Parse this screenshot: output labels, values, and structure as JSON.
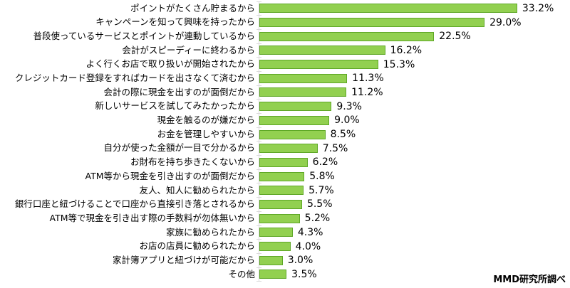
{
  "chart_data": {
    "type": "bar",
    "orientation": "horizontal",
    "title": "",
    "xlabel": "",
    "ylabel": "",
    "xlim": [
      0,
      40
    ],
    "grid": false,
    "legend": false,
    "bar_color": "#92d050",
    "bar_border_color": "#5ea726",
    "axis_color": "#d9d9d9",
    "categories": [
      "ポイントがたくさん貯まるから",
      "キャンペーンを知って興味を持ったから",
      "普段使っているサービスとポイントが連動しているから",
      "会計がスピーディーに終わるから",
      "よく行くお店で取り扱いが開始されたから",
      "クレジットカード登録をすればカードを出さなくて済むから",
      "会計の際に現金を出すのが面倒だから",
      "新しいサービスを試してみたかったから",
      "現金を触るのが嫌だから",
      "お金を管理しやすいから",
      "自分が使った金額が一目で分かるから",
      "お財布を持ち歩きたくないから",
      "ATM等から現金を引き出すのが面倒だから",
      "友人、知人に勧められたから",
      "銀行口座と紐づけることで口座から直接引き落とされるから",
      "ATM等で現金を引き出す際の手数料が勿体無いから",
      "家族に勧められたから",
      "お店の店員に勧められたから",
      "家計簿アプリと紐づけが可能だから",
      "その他"
    ],
    "values": [
      33.2,
      29.0,
      22.5,
      16.2,
      15.3,
      11.3,
      11.2,
      9.3,
      9.0,
      8.5,
      7.5,
      6.2,
      5.8,
      5.7,
      5.5,
      5.2,
      4.3,
      4.0,
      3.0,
      3.5
    ],
    "value_labels": [
      "33.2%",
      "29.0%",
      "22.5%",
      "16.2%",
      "15.3%",
      "11.3%",
      "11.2%",
      "9.3%",
      "9.0%",
      "8.5%",
      "7.5%",
      "6.2%",
      "5.8%",
      "5.7%",
      "5.5%",
      "5.2%",
      "4.3%",
      "4.0%",
      "3.0%",
      "3.5%"
    ]
  },
  "footer": {
    "source_note": "MMD研究所調べ"
  }
}
